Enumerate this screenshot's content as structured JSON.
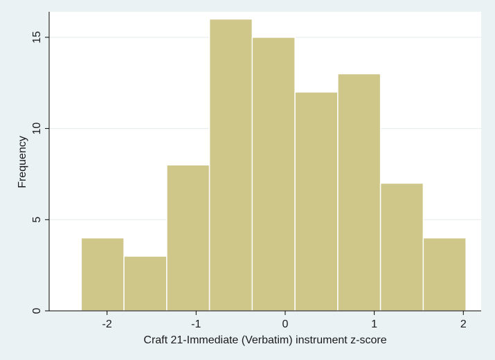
{
  "chart_data": {
    "type": "bar",
    "title": "",
    "xlabel": "Craft 21-Immediate (Verbatim) instrument z-score",
    "ylabel": "Frequency",
    "bins": [
      {
        "start": -2.29,
        "end": -1.81,
        "value": 4
      },
      {
        "start": -1.81,
        "end": -1.33,
        "value": 3
      },
      {
        "start": -1.33,
        "end": -0.85,
        "value": 8
      },
      {
        "start": -0.85,
        "end": -0.37,
        "value": 16
      },
      {
        "start": -0.37,
        "end": 0.11,
        "value": 15
      },
      {
        "start": 0.11,
        "end": 0.59,
        "value": 12
      },
      {
        "start": 0.59,
        "end": 1.07,
        "value": 13
      },
      {
        "start": 1.07,
        "end": 1.55,
        "value": 7
      },
      {
        "start": 1.55,
        "end": 2.03,
        "value": 4
      }
    ],
    "xlim": [
      -2.65,
      2.2
    ],
    "ylim": [
      0,
      16.4
    ],
    "xticks": [
      {
        "value": -2,
        "label": "-2"
      },
      {
        "value": -1,
        "label": "-1"
      },
      {
        "value": 0,
        "label": "0"
      },
      {
        "value": 1,
        "label": "1"
      },
      {
        "value": 2,
        "label": "2"
      }
    ],
    "yticks": [
      {
        "value": 0,
        "label": "0"
      },
      {
        "value": 5,
        "label": "5"
      },
      {
        "value": 10,
        "label": "10"
      },
      {
        "value": 15,
        "label": "15"
      }
    ],
    "grid": true,
    "colors": {
      "bar_fill": "#cfc68a",
      "bar_stroke": "#ffffff",
      "plot_background": "#ffffff",
      "page_background": "#eaf2f3",
      "grid": "#e3ebec",
      "axis": "#000000"
    }
  }
}
